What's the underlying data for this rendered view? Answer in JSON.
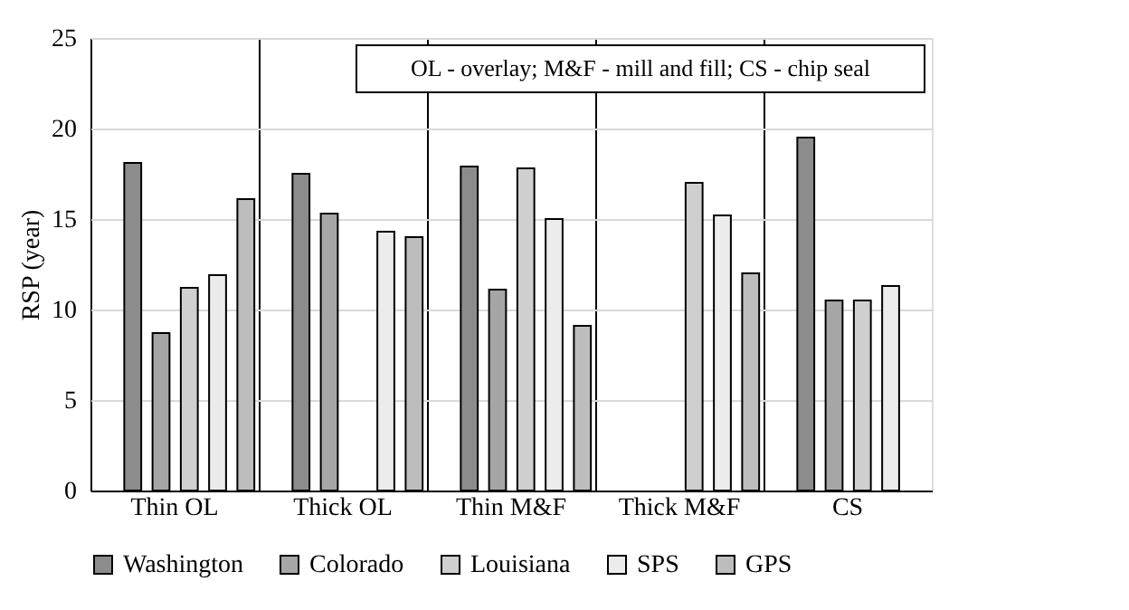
{
  "chart_data": {
    "type": "bar",
    "ylabel": "RSP (year)",
    "categories": [
      "Thin OL",
      "Thick OL",
      "Thin M&F",
      "Thick M&F",
      "CS"
    ],
    "series": [
      {
        "name": "Washington",
        "color": "#8c8c8c",
        "values": [
          18.1,
          17.5,
          17.9,
          null,
          19.5
        ]
      },
      {
        "name": "Colorado",
        "color": "#a6a6a6",
        "values": [
          8.7,
          15.3,
          11.1,
          null,
          10.5
        ]
      },
      {
        "name": "Louisiana",
        "color": "#cfcfcf",
        "values": [
          11.2,
          null,
          17.8,
          17.0,
          10.5
        ]
      },
      {
        "name": "SPS",
        "color": "#ececec",
        "values": [
          11.9,
          14.3,
          15.0,
          15.2,
          11.3
        ]
      },
      {
        "name": "GPS",
        "color": "#bdbdbd",
        "values": [
          16.1,
          14.0,
          9.1,
          12.0,
          null
        ]
      }
    ],
    "ylim": [
      0,
      25
    ],
    "yticks": [
      0,
      5,
      10,
      15,
      20,
      25
    ],
    "grid": "y",
    "legend": "bottom",
    "annotations": [
      "OL - overlay; M&F - mill and fill; CS - chip seal"
    ]
  }
}
